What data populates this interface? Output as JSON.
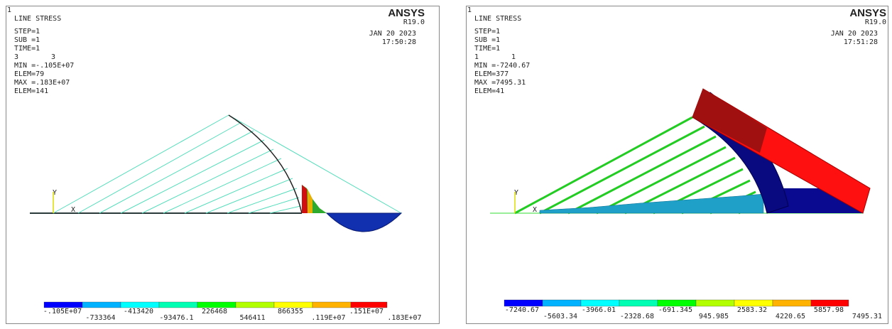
{
  "left": {
    "corner": "1",
    "title": "LINE STRESS",
    "info": [
      "STEP=1",
      "SUB =1",
      "TIME=1"
    ],
    "ids": [
      "3",
      "3"
    ],
    "stats": [
      "MIN =-.105E+07",
      "ELEM=79",
      "MAX =.183E+07",
      "ELEM=141"
    ],
    "brand": "ANSYS",
    "version": "R19.0",
    "date": "JAN 20 2023",
    "time": "17:50:28",
    "axes": [
      "Y",
      "X"
    ],
    "legend": [
      "-.105E+07",
      "-733364",
      "-413420",
      "-93476.1",
      "226468",
      "546411",
      "866355",
      ".119E+07",
      ".151E+07",
      ".183E+07"
    ]
  },
  "right": {
    "corner": "1",
    "title": "LINE STRESS",
    "info": [
      "STEP=1",
      "SUB =1",
      "TIME=1"
    ],
    "ids": [
      "1",
      "1"
    ],
    "stats": [
      "MIN =-7240.67",
      "ELEM=377",
      "MAX =7495.31",
      "ELEM=41"
    ],
    "brand": "ANSYS",
    "version": "R19.0",
    "date": "JAN 20 2023",
    "time": "17:51:28",
    "axes": [
      "Y",
      "X"
    ],
    "legend": [
      "-7240.67",
      "-5603.34",
      "-3966.01",
      "-2328.68",
      "-691.345",
      "945.985",
      "2583.32",
      "4220.65",
      "5857.98",
      "7495.31"
    ]
  }
}
